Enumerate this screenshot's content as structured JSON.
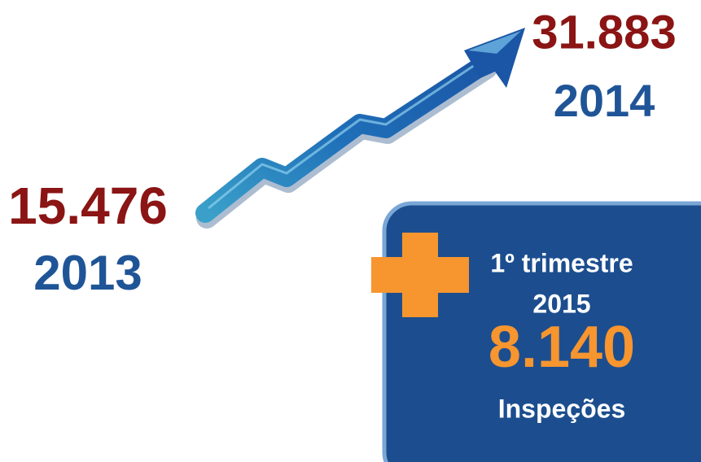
{
  "left": {
    "value": "15.476",
    "year": "2013"
  },
  "right": {
    "value": "31.883",
    "year": "2014"
  },
  "box": {
    "period": "1º trimestre",
    "year": "2015",
    "value": "8.140",
    "label": "Inspeções"
  }
}
